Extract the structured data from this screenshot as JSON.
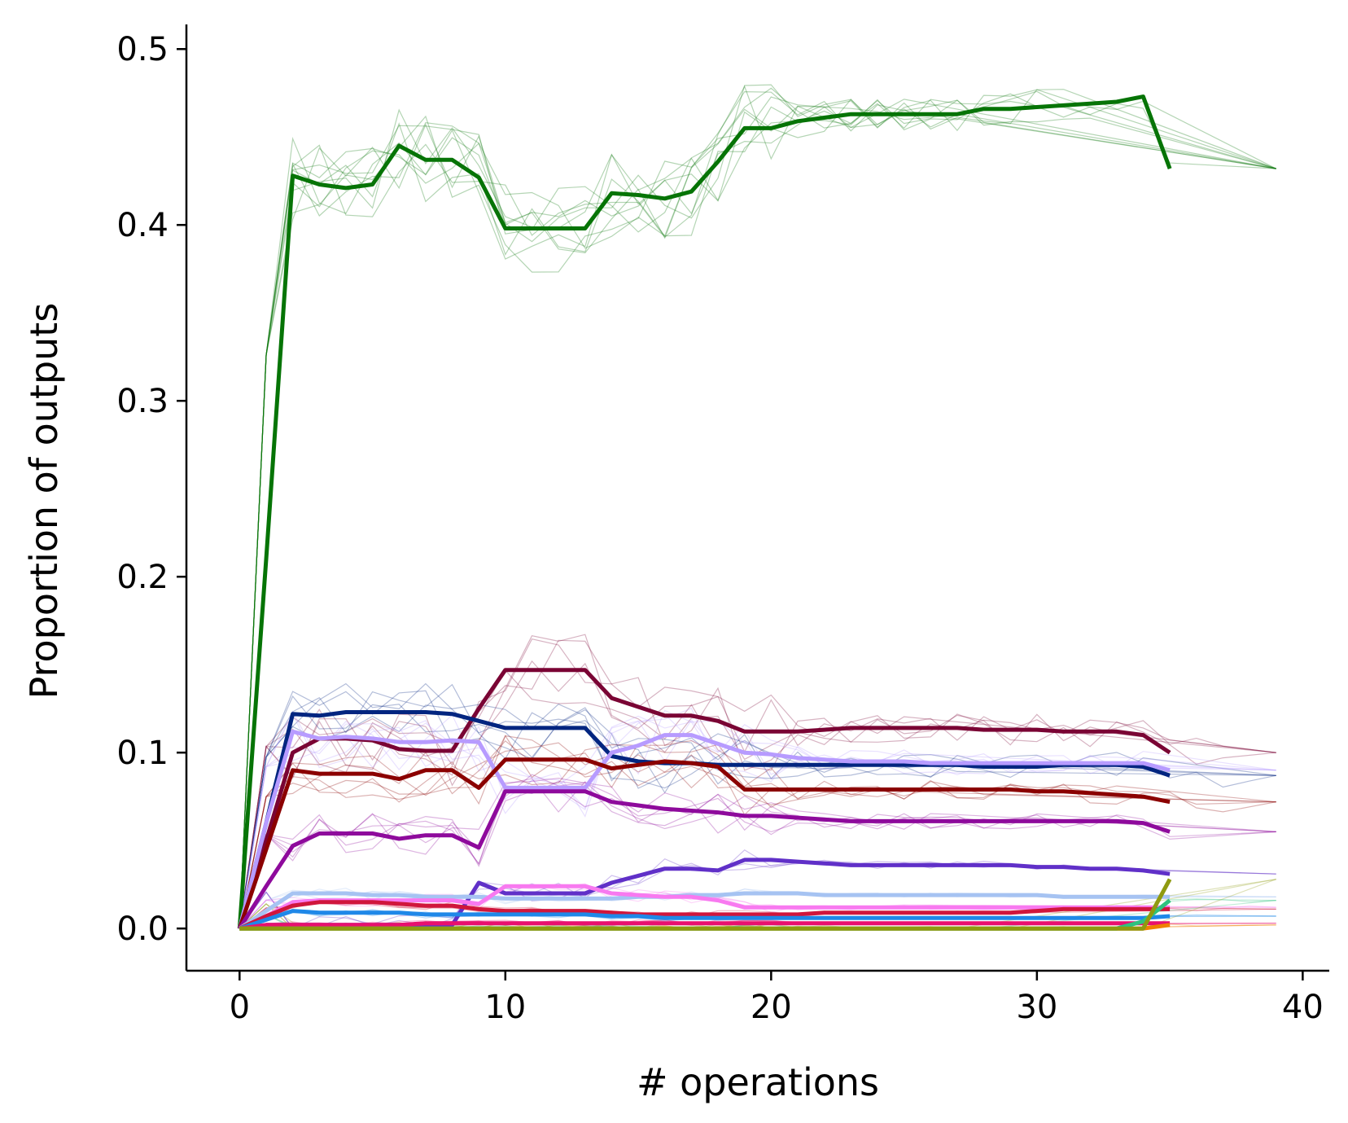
{
  "chart_data": {
    "type": "line",
    "title": "",
    "xlabel": "# operations",
    "ylabel": "Proportion of outputs",
    "xlim": [
      -2,
      41
    ],
    "ylim": [
      -0.024,
      0.514
    ],
    "xticks": [
      0,
      10,
      20,
      30,
      40
    ],
    "xtick_labels": [
      "0",
      "10",
      "20",
      "30",
      "40"
    ],
    "yticks": [
      0.0,
      0.1,
      0.2,
      0.3,
      0.4,
      0.5
    ],
    "ytick_labels": [
      "0.0",
      "0.1",
      "0.2",
      "0.3",
      "0.4",
      "0.5"
    ],
    "grid": false,
    "legend": "none",
    "x": [
      0,
      1,
      2,
      3,
      4,
      5,
      6,
      7,
      8,
      9,
      10,
      11,
      12,
      13,
      14,
      15,
      16,
      17,
      18,
      19,
      20,
      21,
      22,
      23,
      24,
      25,
      26,
      27,
      28,
      29,
      30,
      31,
      32,
      33,
      34,
      35
    ],
    "series": [
      {
        "color": "#067406",
        "values": [
          0,
          0.21,
          0.428,
          0.423,
          0.421,
          0.423,
          0.445,
          0.437,
          0.437,
          0.427,
          0.398,
          0.398,
          0.398,
          0.398,
          0.418,
          0.417,
          0.415,
          0.419,
          0.436,
          0.455,
          0.455,
          0.459,
          0.461,
          0.463,
          0.463,
          0.463,
          0.463,
          0.463,
          0.466,
          0.466,
          0.467,
          0.468,
          0.469,
          0.47,
          0.473,
          0.432
        ]
      },
      {
        "color": "#7a0434",
        "values": [
          0,
          0.05,
          0.1,
          0.108,
          0.108,
          0.107,
          0.102,
          0.101,
          0.101,
          0.125,
          0.147,
          0.147,
          0.147,
          0.147,
          0.131,
          0.126,
          0.121,
          0.121,
          0.118,
          0.112,
          0.112,
          0.112,
          0.113,
          0.114,
          0.114,
          0.114,
          0.114,
          0.114,
          0.113,
          0.113,
          0.113,
          0.112,
          0.112,
          0.112,
          0.11,
          0.1
        ]
      },
      {
        "color": "#022580",
        "values": [
          0,
          0.06,
          0.122,
          0.121,
          0.123,
          0.123,
          0.123,
          0.123,
          0.122,
          0.118,
          0.114,
          0.114,
          0.114,
          0.114,
          0.098,
          0.095,
          0.094,
          0.094,
          0.093,
          0.093,
          0.093,
          0.093,
          0.093,
          0.093,
          0.093,
          0.093,
          0.093,
          0.093,
          0.092,
          0.092,
          0.092,
          0.093,
          0.093,
          0.093,
          0.092,
          0.087
        ]
      },
      {
        "color": "#b79bff",
        "values": [
          0,
          0.06,
          0.112,
          0.108,
          0.109,
          0.108,
          0.106,
          0.106,
          0.107,
          0.106,
          0.08,
          0.08,
          0.08,
          0.08,
          0.1,
          0.104,
          0.11,
          0.11,
          0.105,
          0.1,
          0.099,
          0.097,
          0.096,
          0.095,
          0.095,
          0.095,
          0.094,
          0.094,
          0.094,
          0.094,
          0.094,
          0.094,
          0.094,
          0.094,
          0.094,
          0.09
        ]
      },
      {
        "color": "#8b0000",
        "values": [
          0,
          0.045,
          0.09,
          0.088,
          0.088,
          0.088,
          0.085,
          0.09,
          0.09,
          0.08,
          0.096,
          0.096,
          0.096,
          0.096,
          0.091,
          0.093,
          0.095,
          0.094,
          0.092,
          0.079,
          0.079,
          0.079,
          0.079,
          0.079,
          0.079,
          0.079,
          0.079,
          0.079,
          0.079,
          0.079,
          0.078,
          0.078,
          0.077,
          0.076,
          0.075,
          0.072
        ]
      },
      {
        "color": "#8e0a9c",
        "values": [
          0,
          0.024,
          0.047,
          0.054,
          0.054,
          0.054,
          0.051,
          0.053,
          0.053,
          0.046,
          0.078,
          0.078,
          0.078,
          0.078,
          0.072,
          0.07,
          0.068,
          0.067,
          0.066,
          0.064,
          0.064,
          0.063,
          0.062,
          0.061,
          0.061,
          0.061,
          0.061,
          0.061,
          0.061,
          0.061,
          0.061,
          0.061,
          0.061,
          0.061,
          0.06,
          0.055
        ]
      },
      {
        "color": "#6030c8",
        "values": [
          0,
          0.002,
          0.002,
          0.002,
          0.002,
          0.002,
          0.002,
          0.002,
          0.002,
          0.026,
          0.02,
          0.02,
          0.02,
          0.02,
          0.026,
          0.03,
          0.034,
          0.034,
          0.033,
          0.039,
          0.039,
          0.038,
          0.037,
          0.036,
          0.036,
          0.036,
          0.036,
          0.036,
          0.036,
          0.036,
          0.035,
          0.035,
          0.034,
          0.034,
          0.033,
          0.031
        ]
      },
      {
        "color": "#a6c3f2",
        "values": [
          0,
          0.01,
          0.02,
          0.02,
          0.02,
          0.019,
          0.019,
          0.018,
          0.018,
          0.018,
          0.017,
          0.017,
          0.017,
          0.017,
          0.017,
          0.018,
          0.018,
          0.019,
          0.019,
          0.02,
          0.02,
          0.02,
          0.019,
          0.019,
          0.019,
          0.019,
          0.019,
          0.019,
          0.019,
          0.019,
          0.019,
          0.018,
          0.018,
          0.018,
          0.018,
          0.018
        ]
      },
      {
        "color": "#f879f0",
        "values": [
          0,
          0.007,
          0.015,
          0.016,
          0.016,
          0.016,
          0.016,
          0.016,
          0.016,
          0.014,
          0.024,
          0.024,
          0.024,
          0.024,
          0.02,
          0.019,
          0.018,
          0.018,
          0.016,
          0.012,
          0.012,
          0.012,
          0.012,
          0.012,
          0.012,
          0.012,
          0.012,
          0.012,
          0.012,
          0.012,
          0.012,
          0.012,
          0.012,
          0.012,
          0.012,
          0.012
        ]
      },
      {
        "color": "#d0163c",
        "values": [
          0,
          0.007,
          0.013,
          0.015,
          0.015,
          0.015,
          0.014,
          0.013,
          0.013,
          0.011,
          0.01,
          0.01,
          0.01,
          0.01,
          0.009,
          0.008,
          0.008,
          0.008,
          0.008,
          0.008,
          0.008,
          0.008,
          0.009,
          0.009,
          0.009,
          0.009,
          0.009,
          0.009,
          0.009,
          0.009,
          0.01,
          0.011,
          0.011,
          0.011,
          0.011,
          0.011
        ]
      },
      {
        "color": "#1f88e8",
        "values": [
          0,
          0.005,
          0.01,
          0.009,
          0.009,
          0.009,
          0.009,
          0.008,
          0.008,
          0.008,
          0.008,
          0.008,
          0.008,
          0.008,
          0.007,
          0.007,
          0.006,
          0.006,
          0.006,
          0.006,
          0.006,
          0.006,
          0.006,
          0.006,
          0.006,
          0.006,
          0.006,
          0.006,
          0.006,
          0.006,
          0.006,
          0.006,
          0.006,
          0.006,
          0.006,
          0.007
        ]
      },
      {
        "color": "#e8106e",
        "values": [
          0,
          0.002,
          0.002,
          0.002,
          0.002,
          0.002,
          0.002,
          0.003,
          0.003,
          0.003,
          0.003,
          0.003,
          0.003,
          0.003,
          0.003,
          0.003,
          0.003,
          0.003,
          0.003,
          0.003,
          0.003,
          0.003,
          0.003,
          0.003,
          0.003,
          0.003,
          0.003,
          0.003,
          0.003,
          0.003,
          0.003,
          0.003,
          0.003,
          0.003,
          0.003,
          0.003
        ]
      },
      {
        "color": "#f08000",
        "values": [
          0,
          0,
          0,
          0,
          0,
          0,
          0,
          0,
          0,
          0,
          0,
          0,
          0,
          0,
          0,
          0,
          0,
          0,
          0,
          0,
          0,
          0,
          0,
          0,
          0,
          0,
          0,
          0,
          0,
          0,
          0,
          0,
          0,
          0,
          0,
          0.002
        ]
      },
      {
        "color": "#2ec27e",
        "values": [
          0,
          0,
          0,
          0,
          0,
          0,
          0,
          0,
          0,
          0,
          0,
          0,
          0,
          0,
          0,
          0,
          0,
          0,
          0,
          0,
          0,
          0,
          0,
          0,
          0,
          0,
          0,
          0,
          0,
          0,
          0,
          0,
          0,
          0,
          0.004,
          0.016
        ]
      },
      {
        "color": "#8f9a10",
        "values": [
          0,
          0,
          0,
          0,
          0,
          0,
          0,
          0,
          0,
          0,
          0,
          0,
          0,
          0,
          0,
          0,
          0,
          0,
          0,
          0,
          0,
          0,
          0,
          0,
          0,
          0,
          0,
          0,
          0,
          0,
          0,
          0,
          0,
          0,
          0,
          0.028
        ]
      }
    ]
  }
}
